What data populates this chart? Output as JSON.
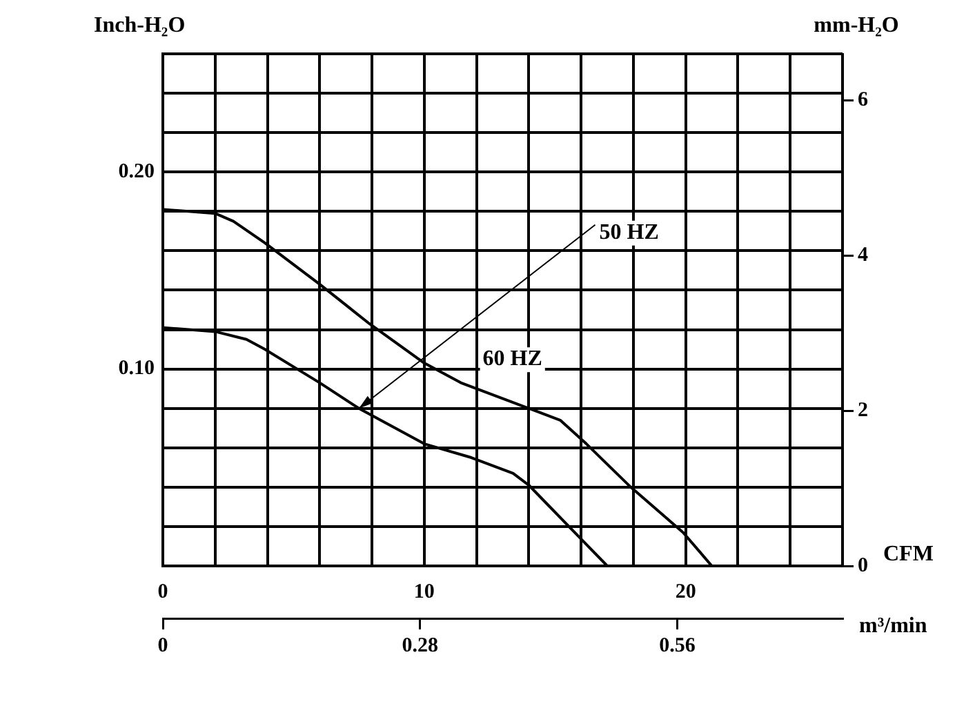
{
  "chart_data": {
    "type": "line",
    "xlabel": "CFM",
    "ylabel": "Inch-H₂O",
    "y2label": "mm-H₂O",
    "x2label": "m³/min",
    "xlim": [
      0,
      26
    ],
    "xticks": [
      0,
      {
        "value": 2,
        "label": null
      },
      {
        "value": 4,
        "label": null
      },
      {
        "value": 6,
        "label": null
      },
      {
        "value": 8,
        "label": null
      },
      10,
      {
        "value": 12,
        "label": null
      },
      {
        "value": 14,
        "label": null
      },
      {
        "value": 16,
        "label": null
      },
      {
        "value": 18,
        "label": null
      },
      20,
      {
        "value": 22,
        "label": null
      },
      {
        "value": 24,
        "label": null
      },
      {
        "value": 26,
        "label": null
      }
    ],
    "ylim": [
      0,
      0.26
    ],
    "yticks": [
      {
        "value": 0,
        "label": null
      },
      {
        "value": 0.02,
        "label": null
      },
      {
        "value": 0.04,
        "label": null
      },
      {
        "value": 0.06,
        "label": null
      },
      {
        "value": 0.08,
        "label": null
      },
      {
        "value": 0.1,
        "label": "0.10"
      },
      {
        "value": 0.12,
        "label": null
      },
      {
        "value": 0.14,
        "label": null
      },
      {
        "value": 0.16,
        "label": null
      },
      {
        "value": 0.18,
        "label": null
      },
      {
        "value": 0.2,
        "label": "0.20"
      },
      {
        "value": 0.22,
        "label": null
      },
      {
        "value": 0.24,
        "label": null
      },
      {
        "value": 0.26,
        "label": null
      }
    ],
    "y2lim": [
      0,
      6.6
    ],
    "y2ticks": [
      0,
      2,
      4,
      6
    ],
    "x2lim": [
      0,
      0.74
    ],
    "x2ticks": [
      0,
      0.28,
      0.56
    ],
    "grid": true,
    "legend": false,
    "marker": "none",
    "line_style": "solid",
    "series": [
      {
        "name": "50 HZ",
        "color": "#000000",
        "x": [
          0,
          2,
          3.2,
          3.9,
          6,
          7.5,
          10,
          11.8,
          13.4,
          14,
          15.9,
          17
        ],
        "values": [
          0.121,
          0.119,
          0.115,
          0.11,
          0.093,
          0.08,
          0.062,
          0.055,
          0.047,
          0.041,
          0.015,
          0
        ]
      },
      {
        "name": "60 HZ",
        "color": "#000000",
        "x": [
          0,
          2,
          2.7,
          3.9,
          6,
          7.9,
          10,
          11.4,
          14,
          15.2,
          16.2,
          17.9,
          19.9,
          21
        ],
        "values": [
          0.181,
          0.179,
          0.175,
          0.164,
          0.143,
          0.123,
          0.103,
          0.093,
          0.08,
          0.074,
          0.062,
          0.04,
          0.017,
          0
        ]
      }
    ]
  }
}
